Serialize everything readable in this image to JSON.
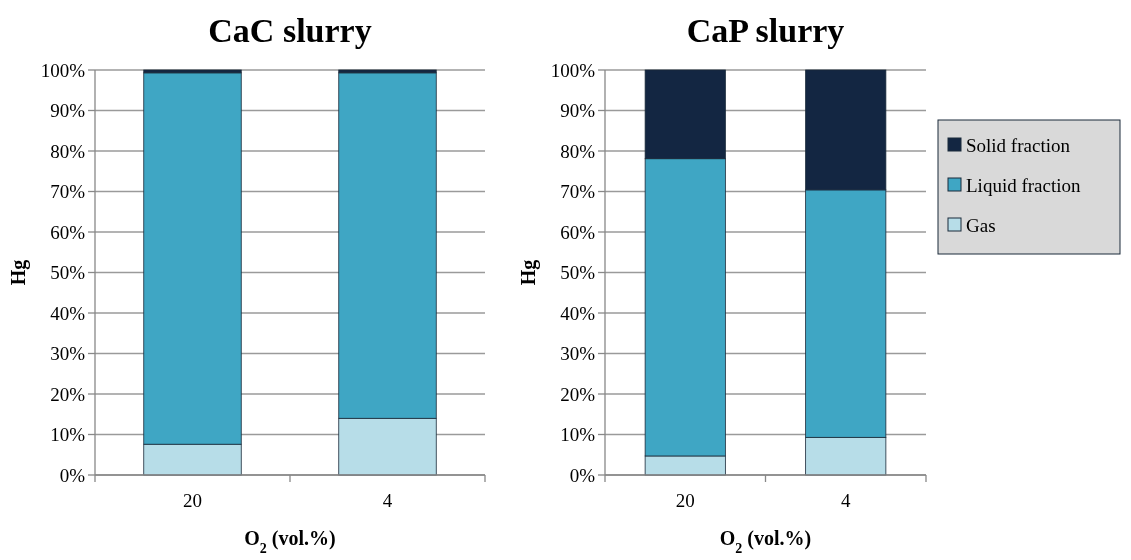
{
  "chart_data": [
    {
      "type": "bar",
      "title": "CaC slurry",
      "xlabel": "O$_{2}$ (vol.%)",
      "ylabel": "Hg",
      "categories": [
        "20",
        "4"
      ],
      "stacked": true,
      "grid": "y",
      "legend": false,
      "ylim": [
        0,
        100
      ],
      "yticks": [
        {
          "value": 0,
          "label": "0%"
        },
        {
          "value": 10,
          "label": "10%"
        },
        {
          "value": 20,
          "label": "20%"
        },
        {
          "value": 30,
          "label": "30%"
        },
        {
          "value": 40,
          "label": "40%"
        },
        {
          "value": 50,
          "label": "50%"
        },
        {
          "value": 60,
          "label": "60%"
        },
        {
          "value": 70,
          "label": "70%"
        },
        {
          "value": 80,
          "label": "80%"
        },
        {
          "value": 90,
          "label": "90%"
        },
        {
          "value": 100,
          "label": "100%"
        }
      ],
      "series": [
        {
          "color": "#b7dde8",
          "values": [
            7.6,
            14.0
          ]
        },
        {
          "color": "#3fa6c4",
          "values": [
            91.7,
            85.3
          ]
        },
        {
          "color": "#132642",
          "values": [
            0.7,
            0.7
          ]
        }
      ]
    },
    {
      "type": "bar",
      "title": "CaP slurry",
      "xlabel": "O$_{2}$ (vol.%)",
      "ylabel": "Hg",
      "categories": [
        "20",
        "4"
      ],
      "stacked": true,
      "grid": "y",
      "legend": "right",
      "ylim": [
        0,
        100
      ],
      "yticks": [
        {
          "value": 0,
          "label": "0%"
        },
        {
          "value": 10,
          "label": "10%"
        },
        {
          "value": 20,
          "label": "20%"
        },
        {
          "value": 30,
          "label": "30%"
        },
        {
          "value": 40,
          "label": "40%"
        },
        {
          "value": 50,
          "label": "50%"
        },
        {
          "value": 60,
          "label": "60%"
        },
        {
          "value": 70,
          "label": "70%"
        },
        {
          "value": 80,
          "label": "80%"
        },
        {
          "value": 90,
          "label": "90%"
        },
        {
          "value": 100,
          "label": "100%"
        }
      ],
      "series": [
        {
          "name": "Gas",
          "color": "#b7dde8",
          "values": [
            4.7,
            9.3
          ]
        },
        {
          "name": "Liquid fraction",
          "color": "#3fa6c4",
          "values": [
            73.4,
            61.1
          ]
        },
        {
          "name": "Solid fraction",
          "color": "#132642",
          "values": [
            21.9,
            29.6
          ]
        }
      ]
    }
  ]
}
